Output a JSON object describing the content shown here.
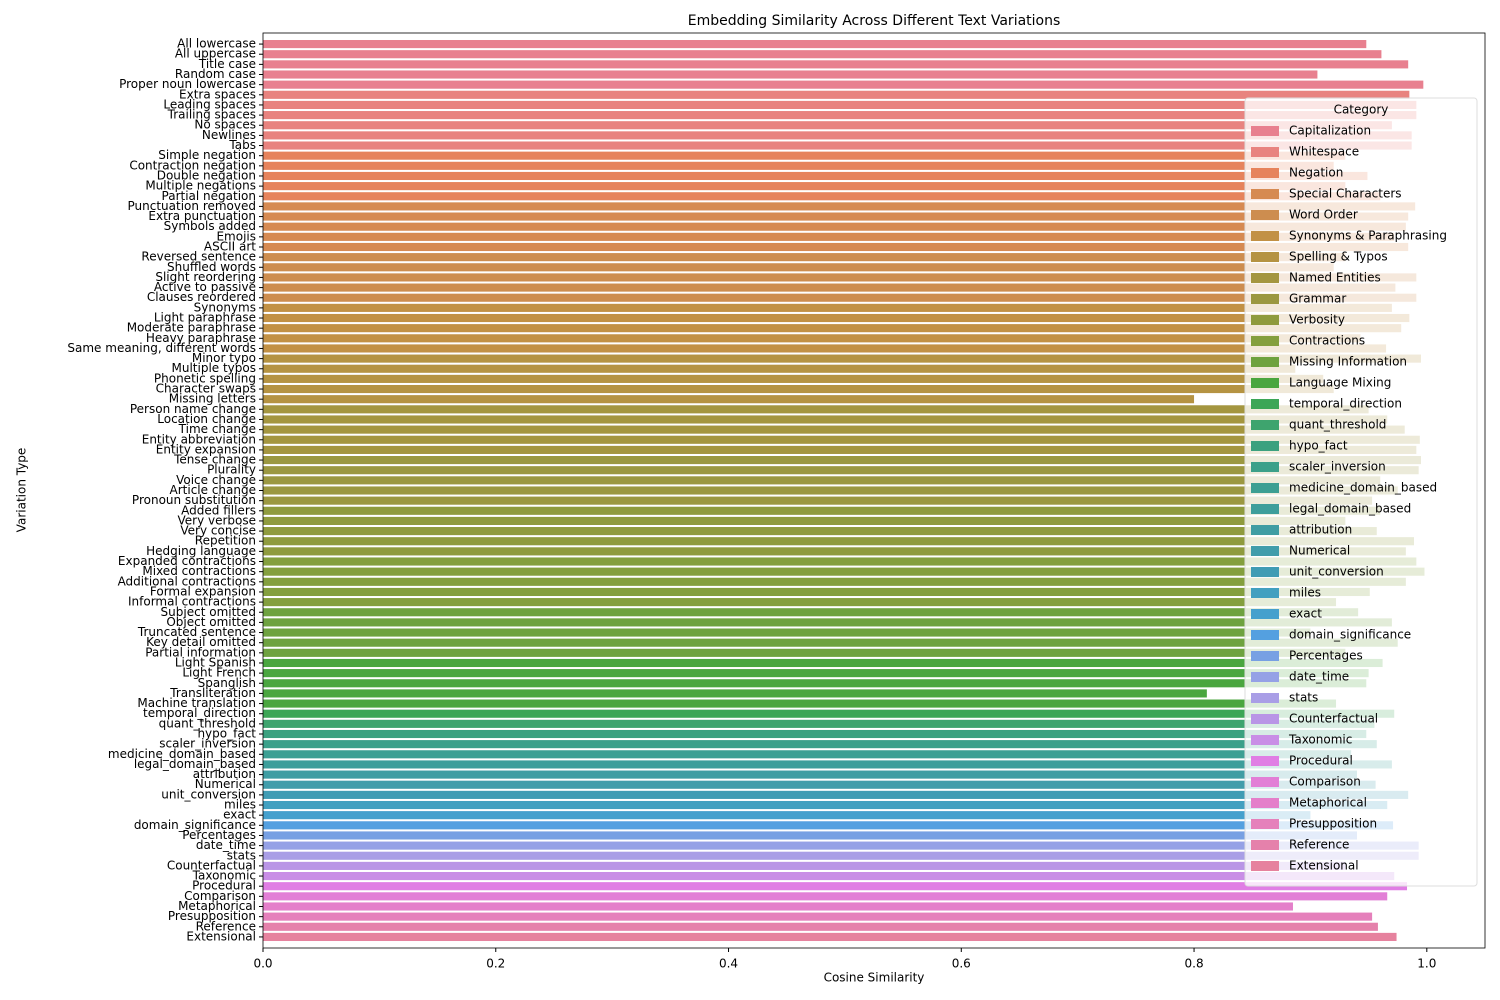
{
  "chart_data": {
    "type": "barh",
    "title": "Embedding Similarity Across Different Text Variations",
    "xlabel": "Cosine Similarity",
    "ylabel": "Variation Type",
    "legend_title": "Category",
    "legend_position": "upper right",
    "categories": [
      "All lowercase",
      "All uppercase",
      "Title case",
      "Random case",
      "Proper noun lowercase",
      "Extra spaces",
      "Leading spaces",
      "Trailing spaces",
      "No spaces",
      "Newlines",
      "Tabs",
      "Simple negation",
      "Contraction negation",
      "Double negation",
      "Multiple negations",
      "Partial negation",
      "Punctuation removed",
      "Extra punctuation",
      "Symbols added",
      "Emojis",
      "ASCII art",
      "Reversed sentence",
      "Shuffled words",
      "Slight reordering",
      "Active to passive",
      "Clauses reordered",
      "Synonyms",
      "Light paraphrase",
      "Moderate paraphrase",
      "Heavy paraphrase",
      "Same meaning, different words",
      "Minor typo",
      "Multiple typos",
      "Phonetic spelling",
      "Character swaps",
      "Missing letters",
      "Person name change",
      "Location change",
      "Time change",
      "Entity abbreviation",
      "Entity expansion",
      "Tense change",
      "Plurality",
      "Voice change",
      "Article change",
      "Pronoun substitution",
      "Added fillers",
      "Very verbose",
      "Very concise",
      "Repetition",
      "Hedging language",
      "Expanded contractions",
      "Mixed contractions",
      "Additional contractions",
      "Formal expansion",
      "Informal contractions",
      "Subject omitted",
      "Object omitted",
      "Truncated sentence",
      "Key detail omitted",
      "Partial information",
      "Light Spanish",
      "Light French",
      "Spanglish",
      "Transliteration",
      "Machine translation",
      "temporal_direction",
      "quant_threshold",
      "hypo_fact",
      "scaler_inversion",
      "medicine_domain_based",
      "legal_domain_based",
      "attribution",
      "Numerical",
      "unit_conversion",
      "miles",
      "exact",
      "domain_significance",
      "Percentages",
      "date_time",
      "stats",
      "Counterfactual",
      "Taxonomic",
      "Procedural",
      "Comparison",
      "Metaphorical",
      "Presupposition",
      "Reference",
      "Extensional"
    ],
    "values": [
      0.948,
      0.961,
      0.984,
      0.906,
      0.997,
      0.985,
      0.991,
      0.991,
      0.97,
      0.987,
      0.987,
      0.93,
      0.92,
      0.949,
      0.93,
      0.96,
      0.99,
      0.984,
      0.982,
      0.972,
      0.984,
      0.93,
      0.92,
      0.991,
      0.973,
      0.991,
      0.97,
      0.985,
      0.978,
      0.943,
      0.965,
      0.995,
      0.887,
      0.911,
      0.92,
      0.8,
      0.95,
      0.966,
      0.981,
      0.994,
      0.991,
      0.995,
      0.993,
      0.96,
      0.975,
      0.953,
      0.96,
      0.93,
      0.957,
      0.989,
      0.982,
      0.991,
      0.998,
      0.982,
      0.951,
      0.922,
      0.941,
      0.97,
      0.9,
      0.975,
      0.93,
      0.962,
      0.95,
      0.948,
      0.811,
      0.922,
      0.972,
      0.955,
      0.948,
      0.957,
      0.935,
      0.97,
      0.94,
      0.956,
      0.984,
      0.966,
      0.9,
      0.971,
      0.94,
      0.993,
      0.993,
      0.93,
      0.972,
      0.983,
      0.966,
      0.885,
      0.953,
      0.958,
      0.974
    ],
    "colors": [
      "#e8808f",
      "#e8808f",
      "#e8808f",
      "#e8808f",
      "#e8808f",
      "#e8837f",
      "#e8837f",
      "#e8837f",
      "#e8837f",
      "#e8837f",
      "#e8837f",
      "#e6835c",
      "#e6835c",
      "#e6835c",
      "#e6835c",
      "#e6835c",
      "#d68a52",
      "#d68a52",
      "#d68a52",
      "#d68a52",
      "#d68a52",
      "#cd8d4f",
      "#cd8d4f",
      "#cd8d4f",
      "#cd8d4f",
      "#cd8d4f",
      "#c29145",
      "#c29145",
      "#c29145",
      "#c29145",
      "#c29145",
      "#b59342",
      "#b59342",
      "#b59342",
      "#b59342",
      "#b59342",
      "#a49640",
      "#a49640",
      "#a49640",
      "#a49640",
      "#a49640",
      "#9b9841",
      "#9b9841",
      "#9b9841",
      "#9b9841",
      "#9b9841",
      "#8f9b3e",
      "#8f9b3e",
      "#8f9b3e",
      "#8f9b3e",
      "#8f9b3e",
      "#849f3e",
      "#849f3e",
      "#849f3e",
      "#849f3e",
      "#849f3e",
      "#6ea23f",
      "#6ea23f",
      "#6ea23f",
      "#6ea23f",
      "#6ea23f",
      "#4aa63f",
      "#4aa63f",
      "#4aa63f",
      "#4aa63f",
      "#4aa63f",
      "#3ca656",
      "#3ea46e",
      "#3ba17f",
      "#3ba08a",
      "#3c9f93",
      "#3d9e9b",
      "#3f9da3",
      "#419dab",
      "#409cb4",
      "#42a0c0",
      "#45a0cd",
      "#54a0e0",
      "#77a0e3",
      "#95a1e6",
      "#a99ee6",
      "#b995e6",
      "#c98ee6",
      "#e07ee4",
      "#e27fd6",
      "#e47fca",
      "#e580bb",
      "#e581ab",
      "#e6829e"
    ],
    "legend": [
      {
        "name": "Capitalization",
        "color": "#e8808f"
      },
      {
        "name": "Whitespace",
        "color": "#e8837f"
      },
      {
        "name": "Negation",
        "color": "#e6835c"
      },
      {
        "name": "Special Characters",
        "color": "#d68a52"
      },
      {
        "name": "Word Order",
        "color": "#cd8d4f"
      },
      {
        "name": "Synonyms & Paraphrasing",
        "color": "#c29145"
      },
      {
        "name": "Spelling & Typos",
        "color": "#b59342"
      },
      {
        "name": "Named Entities",
        "color": "#a49640"
      },
      {
        "name": "Grammar",
        "color": "#9b9841"
      },
      {
        "name": "Verbosity",
        "color": "#8f9b3e"
      },
      {
        "name": "Contractions",
        "color": "#849f3e"
      },
      {
        "name": "Missing Information",
        "color": "#6ea23f"
      },
      {
        "name": "Language Mixing",
        "color": "#4aa63f"
      },
      {
        "name": "temporal_direction",
        "color": "#3ca656"
      },
      {
        "name": "quant_threshold",
        "color": "#3ea46e"
      },
      {
        "name": "hypo_fact",
        "color": "#3ba17f"
      },
      {
        "name": "scaler_inversion",
        "color": "#3ba08a"
      },
      {
        "name": "medicine_domain_based",
        "color": "#3c9f93"
      },
      {
        "name": "legal_domain_based",
        "color": "#3d9e9b"
      },
      {
        "name": "attribution",
        "color": "#3f9da3"
      },
      {
        "name": "Numerical",
        "color": "#419dab"
      },
      {
        "name": "unit_conversion",
        "color": "#409cb4"
      },
      {
        "name": "miles",
        "color": "#42a0c0"
      },
      {
        "name": "exact",
        "color": "#45a0cd"
      },
      {
        "name": "domain_significance",
        "color": "#54a0e0"
      },
      {
        "name": "Percentages",
        "color": "#77a0e3"
      },
      {
        "name": "date_time",
        "color": "#95a1e6"
      },
      {
        "name": "stats",
        "color": "#a99ee6"
      },
      {
        "name": "Counterfactual",
        "color": "#b995e6"
      },
      {
        "name": "Taxonomic",
        "color": "#c98ee6"
      },
      {
        "name": "Procedural",
        "color": "#e07ee4"
      },
      {
        "name": "Comparison",
        "color": "#e27fd6"
      },
      {
        "name": "Metaphorical",
        "color": "#e47fca"
      },
      {
        "name": "Presupposition",
        "color": "#e580bb"
      },
      {
        "name": "Reference",
        "color": "#e581ab"
      },
      {
        "name": "Extensional",
        "color": "#e6829e"
      }
    ],
    "xlim": [
      0,
      1.05
    ],
    "xticks": [
      {
        "value": 0,
        "label": "0.0"
      },
      0.2,
      0.4,
      0.6,
      0.8,
      {
        "value": 1,
        "label": "1.0"
      }
    ],
    "grid": false
  }
}
